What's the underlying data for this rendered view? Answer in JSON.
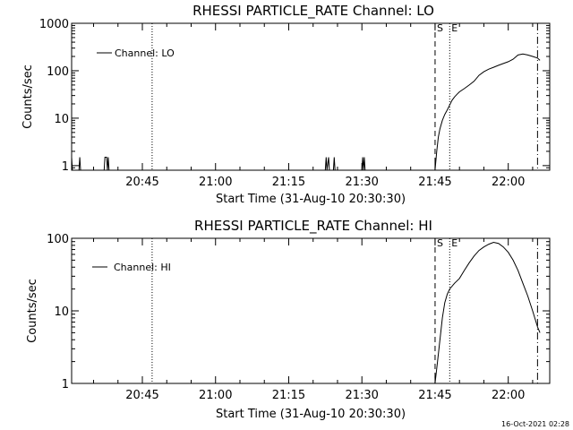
{
  "footer_timestamp": "16-Oct-2021 02:28",
  "chart_data": [
    {
      "type": "line",
      "title": "RHESSI PARTICLE_RATE Channel: LO",
      "xlabel": "Start Time (31-Aug-10 20:30:30)",
      "ylabel": "Counts/sec",
      "y_scale": "log",
      "xlim": [
        "20:30:30",
        "22:08:30"
      ],
      "ylim": [
        0.8,
        1000
      ],
      "x_tick_labels": [
        "20:45",
        "21:00",
        "21:15",
        "21:30",
        "21:45",
        "22:00"
      ],
      "y_tick_labels": [
        "1",
        "10",
        "100",
        "1000"
      ],
      "legend": {
        "label": "Channel: LO",
        "position": "top-left"
      },
      "markers": [
        {
          "label": "",
          "time": "20:47:00",
          "style": "dotted"
        },
        {
          "label": "S",
          "time": "21:45:00",
          "style": "dashed"
        },
        {
          "label": "E",
          "time": "21:48:00",
          "style": "dotted"
        },
        {
          "label": "",
          "time": "22:06:00",
          "style": "dashdot"
        }
      ],
      "series": [
        {
          "name": "Channel: LO",
          "points": [
            [
              "20:30:30",
              1.5
            ],
            [
              "20:30:40",
              0.8
            ],
            [
              "20:32:00",
              0.8
            ],
            [
              "20:32:10",
              1.5
            ],
            [
              "20:32:20",
              0.8
            ],
            [
              "20:37:10",
              0.8
            ],
            [
              "20:37:20",
              1.5
            ],
            [
              "20:37:40",
              1.5
            ],
            [
              "20:37:50",
              0.8
            ],
            [
              "20:38:00",
              1.5
            ],
            [
              "20:38:10",
              0.8
            ],
            [
              "21:22:30",
              0.8
            ],
            [
              "21:22:40",
              1.5
            ],
            [
              "21:22:50",
              0.8
            ],
            [
              "21:23:10",
              1.5
            ],
            [
              "21:23:20",
              0.8
            ],
            [
              "21:24:10",
              0.8
            ],
            [
              "21:24:20",
              1.5
            ],
            [
              "21:24:30",
              0.8
            ],
            [
              "21:30:00",
              0.8
            ],
            [
              "21:30:10",
              1.5
            ],
            [
              "21:30:20",
              0.8
            ],
            [
              "21:30:30",
              1.5
            ],
            [
              "21:30:40",
              0.8
            ],
            [
              "21:45:00",
              0.8
            ],
            [
              "21:45:20",
              2
            ],
            [
              "21:45:40",
              4
            ],
            [
              "21:46:00",
              6
            ],
            [
              "21:46:30",
              9
            ],
            [
              "21:47:00",
              12
            ],
            [
              "21:47:30",
              15
            ],
            [
              "21:48:00",
              19
            ],
            [
              "21:48:30",
              24
            ],
            [
              "21:49:00",
              28
            ],
            [
              "21:49:30",
              32
            ],
            [
              "21:50:00",
              36
            ],
            [
              "21:51:00",
              42
            ],
            [
              "21:52:00",
              50
            ],
            [
              "21:53:00",
              60
            ],
            [
              "21:54:00",
              80
            ],
            [
              "21:55:00",
              95
            ],
            [
              "21:56:00",
              108
            ],
            [
              "21:57:00",
              118
            ],
            [
              "21:58:00",
              130
            ],
            [
              "21:59:00",
              142
            ],
            [
              "22:00:00",
              155
            ],
            [
              "22:01:00",
              175
            ],
            [
              "22:02:00",
              215
            ],
            [
              "22:03:00",
              225
            ],
            [
              "22:04:00",
              215
            ],
            [
              "22:05:00",
              200
            ],
            [
              "22:06:00",
              185
            ],
            [
              "22:06:30",
              165
            ]
          ]
        }
      ]
    },
    {
      "type": "line",
      "title": "RHESSI PARTICLE_RATE Channel: HI",
      "xlabel": "Start Time (31-Aug-10 20:30:30)",
      "ylabel": "Counts/sec",
      "y_scale": "log",
      "xlim": [
        "20:30:30",
        "22:08:30"
      ],
      "ylim": [
        1,
        100
      ],
      "x_tick_labels": [
        "20:45",
        "21:00",
        "21:15",
        "21:30",
        "21:45",
        "22:00"
      ],
      "y_tick_labels": [
        "1",
        "10",
        "100"
      ],
      "legend": {
        "label": "Channel: HI",
        "position": "top-left"
      },
      "markers": [
        {
          "label": "",
          "time": "20:47:00",
          "style": "dotted"
        },
        {
          "label": "S",
          "time": "21:45:00",
          "style": "dashed"
        },
        {
          "label": "E",
          "time": "21:48:00",
          "style": "dotted"
        },
        {
          "label": "",
          "time": "22:06:00",
          "style": "dashdot"
        }
      ],
      "series": [
        {
          "name": "Channel: HI",
          "points": [
            [
              "21:45:00",
              1
            ],
            [
              "21:45:30",
              2
            ],
            [
              "21:46:00",
              4
            ],
            [
              "21:46:30",
              8
            ],
            [
              "21:47:00",
              13
            ],
            [
              "21:47:30",
              17
            ],
            [
              "21:48:00",
              20
            ],
            [
              "21:49:00",
              24
            ],
            [
              "21:50:00",
              28
            ],
            [
              "21:51:00",
              36
            ],
            [
              "21:52:00",
              46
            ],
            [
              "21:53:00",
              57
            ],
            [
              "21:54:00",
              68
            ],
            [
              "21:55:00",
              76
            ],
            [
              "21:56:00",
              83
            ],
            [
              "21:57:00",
              88
            ],
            [
              "21:58:00",
              85
            ],
            [
              "21:59:00",
              76
            ],
            [
              "22:00:00",
              64
            ],
            [
              "22:01:00",
              50
            ],
            [
              "22:02:00",
              36
            ],
            [
              "22:03:00",
              24
            ],
            [
              "22:04:00",
              16
            ],
            [
              "22:05:00",
              10
            ],
            [
              "22:06:00",
              6
            ],
            [
              "22:06:30",
              5
            ]
          ]
        }
      ]
    }
  ]
}
